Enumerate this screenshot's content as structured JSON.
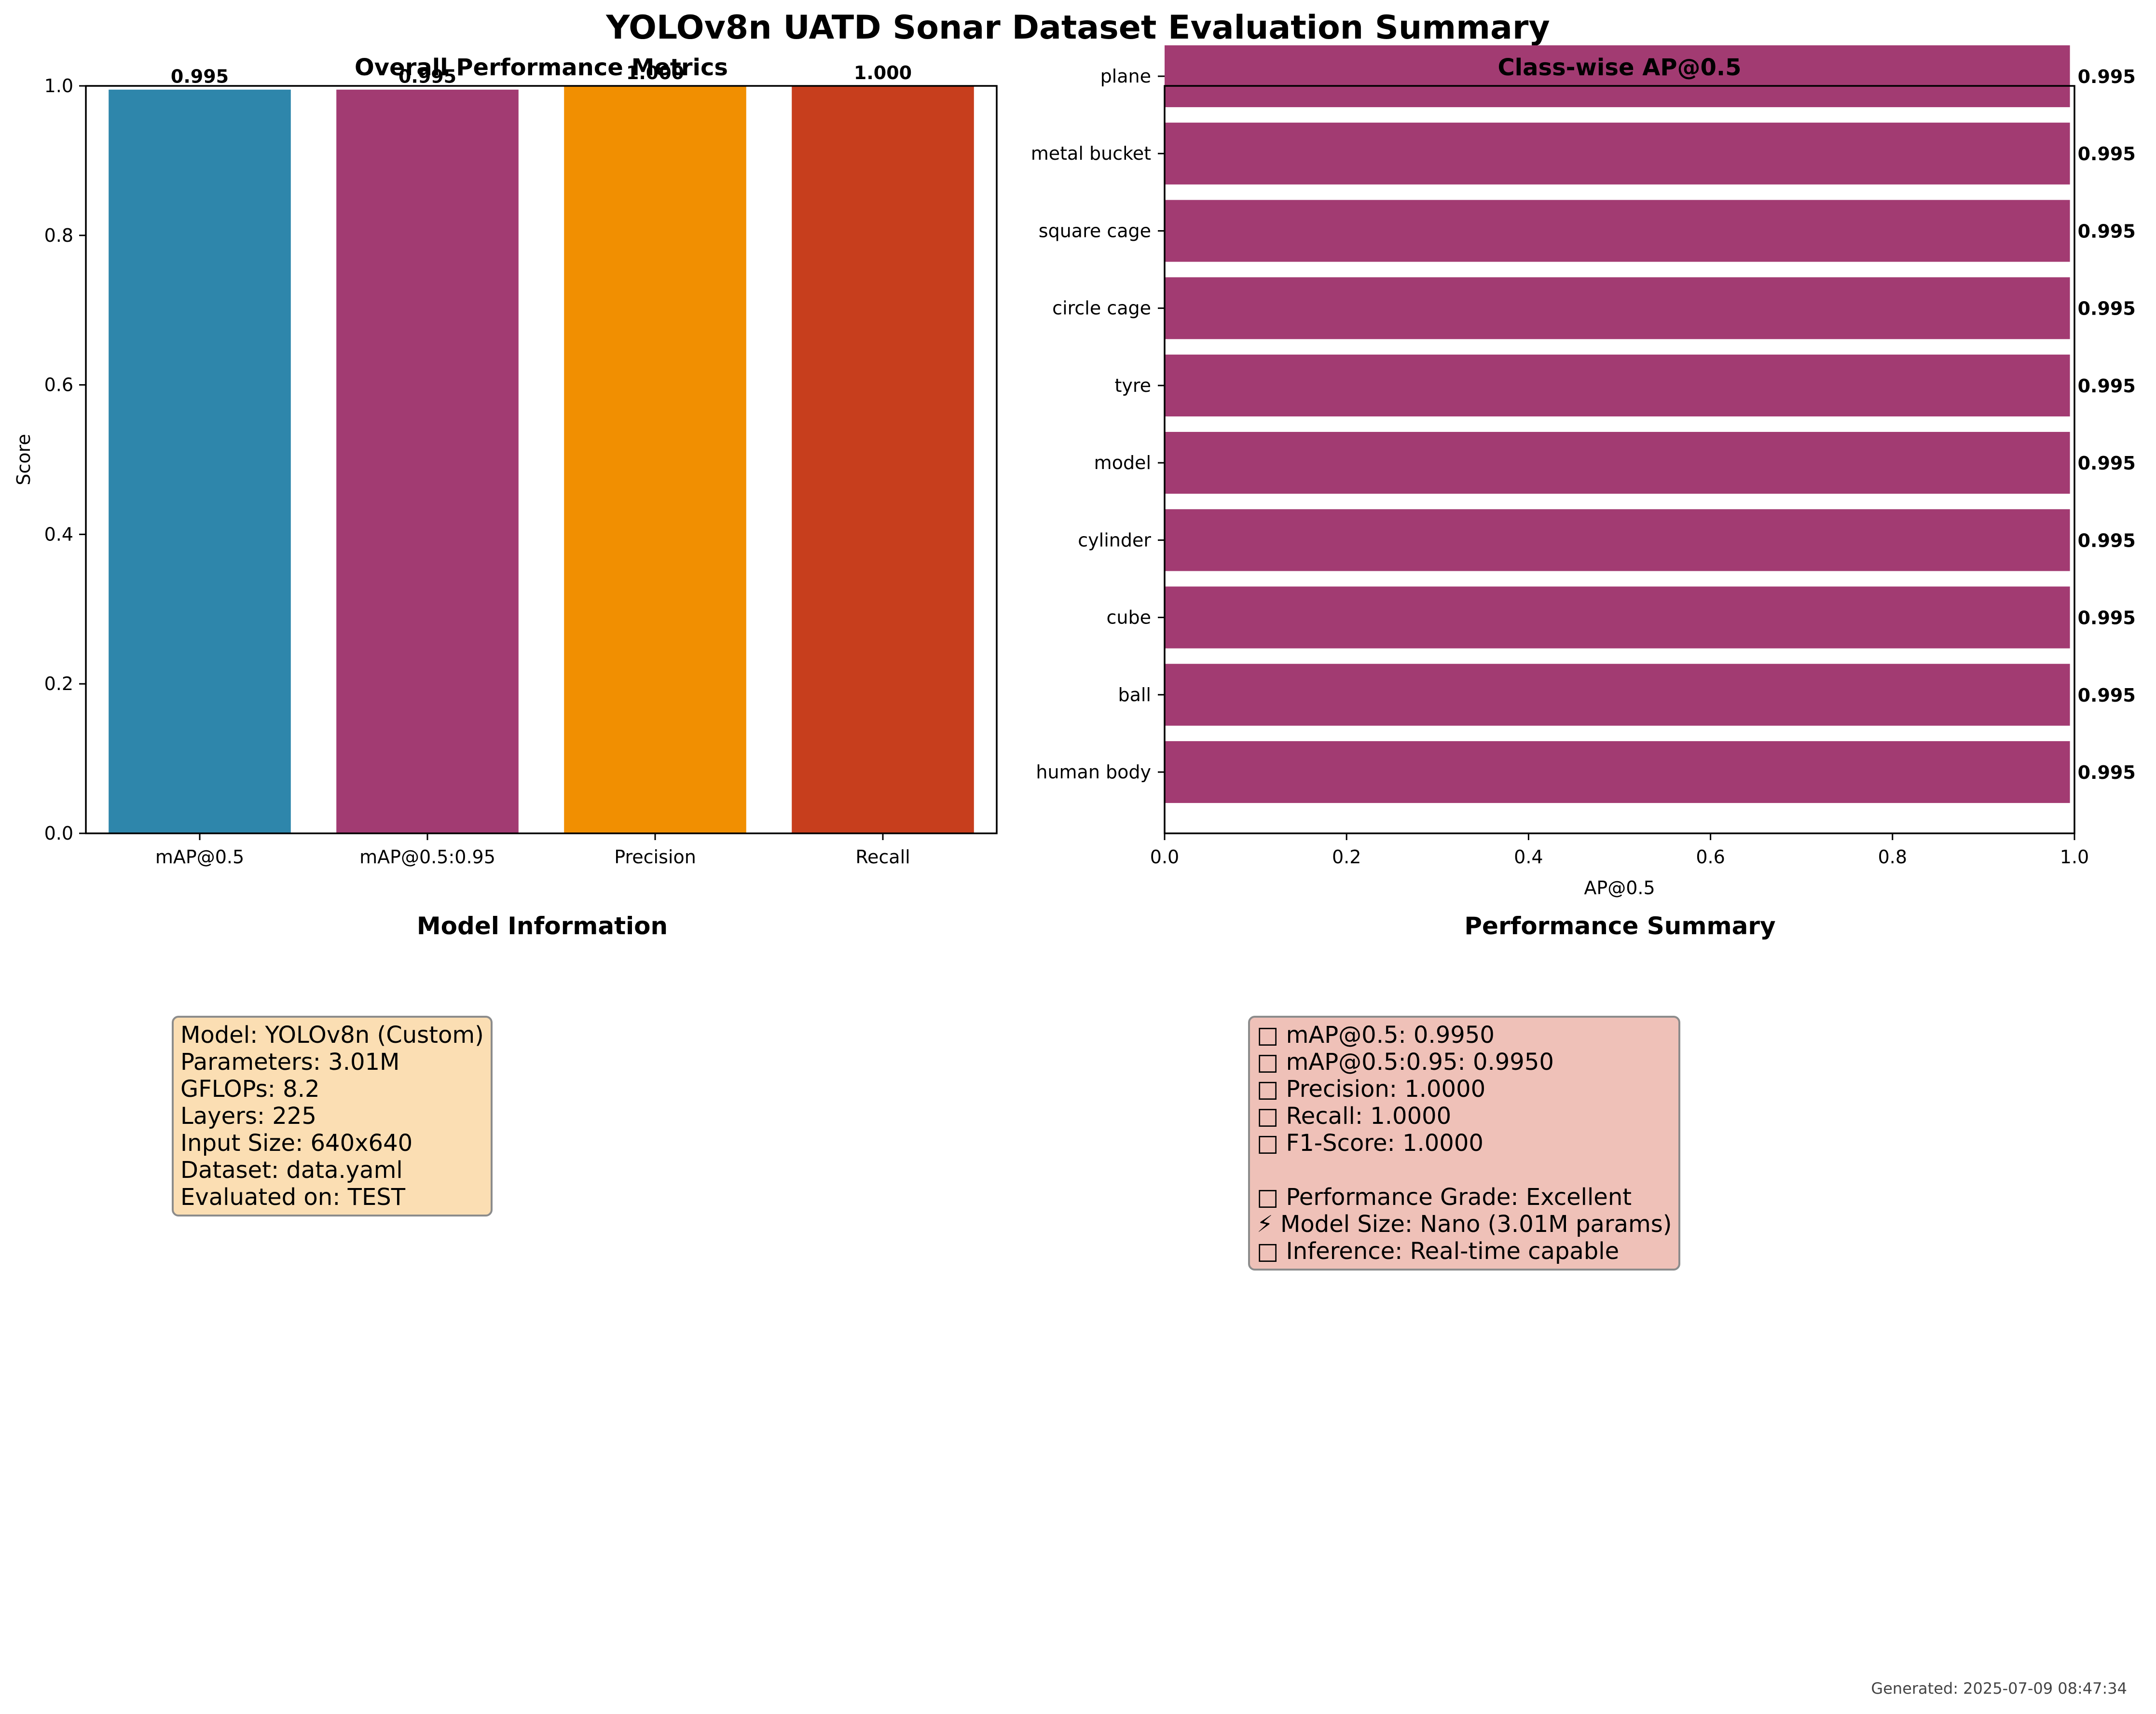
{
  "title": "YOLOv8n UATD Sonar Dataset Evaluation Summary",
  "chart_data": [
    {
      "type": "bar",
      "title": "Overall Performance Metrics",
      "categories": [
        "mAP@0.5",
        "mAP@0.5:0.95",
        "Precision",
        "Recall"
      ],
      "values": [
        0.995,
        0.995,
        1.0,
        1.0
      ],
      "value_labels": [
        "0.995",
        "0.995",
        "1.000",
        "1.000"
      ],
      "colors": [
        "#2e86ab",
        "#a23b72",
        "#f18f01",
        "#c73e1d"
      ],
      "ylabel": "Score",
      "xlabel": "",
      "ylim": [
        0,
        1
      ],
      "yticks": [
        "0.0",
        "0.2",
        "0.4",
        "0.6",
        "0.8",
        "1.0"
      ],
      "grid": false
    },
    {
      "type": "bar",
      "orientation": "horizontal",
      "title": "Class-wise AP@0.5",
      "categories": [
        "human body",
        "ball",
        "cube",
        "cylinder",
        "model",
        "tyre",
        "circle cage",
        "square cage",
        "metal bucket",
        "plane"
      ],
      "values": [
        0.995,
        0.995,
        0.995,
        0.995,
        0.995,
        0.995,
        0.995,
        0.995,
        0.995,
        0.995
      ],
      "value_labels": [
        "0.995",
        "0.995",
        "0.995",
        "0.995",
        "0.995",
        "0.995",
        "0.995",
        "0.995",
        "0.995",
        "0.995"
      ],
      "color": "#a23b72",
      "xlabel": "AP@0.5",
      "ylabel": "",
      "xlim": [
        0,
        1
      ],
      "xticks": [
        "0.0",
        "0.2",
        "0.4",
        "0.6",
        "0.8",
        "1.0"
      ],
      "grid": false
    }
  ],
  "model_info": {
    "title": "Model Information",
    "lines": [
      "Model: YOLOv8n (Custom)",
      "Parameters: 3.01M",
      "GFLOPs: 8.2",
      "Layers: 225",
      "Input Size: 640x640",
      "Dataset: data.yaml",
      "Evaluated on: TEST"
    ],
    "box_color": "#fbdeb3"
  },
  "performance_summary": {
    "title": "Performance Summary",
    "lines": [
      "□ mAP@0.5: 0.9950",
      "□ mAP@0.5:0.95: 0.9950",
      "□ Precision: 1.0000",
      "□ Recall: 1.0000",
      "□ F1-Score: 1.0000",
      "",
      "□ Performance Grade: Excellent",
      "⚡ Model Size: Nano (3.01M params)",
      "□ Inference: Real-time capable"
    ],
    "box_color": "#efc1b8"
  },
  "footer": "Generated: 2025-07-09 08:47:34"
}
